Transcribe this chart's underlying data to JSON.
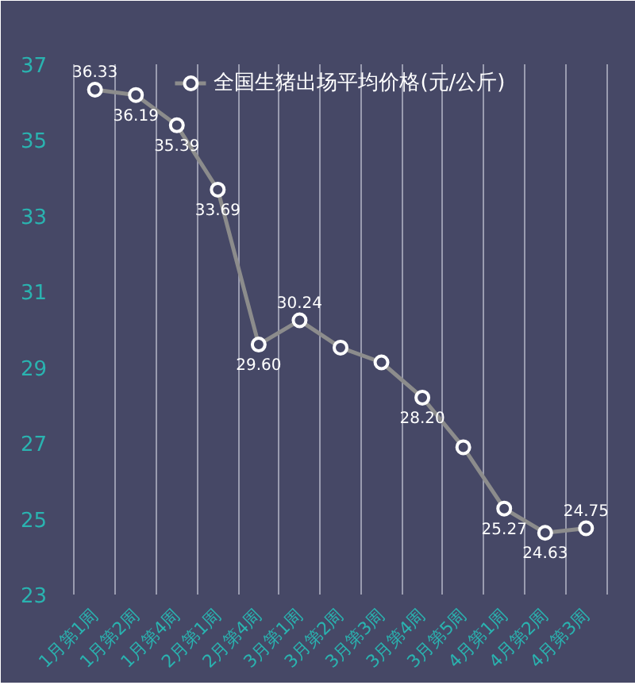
{
  "chart_data": {
    "type": "line",
    "categories": [
      "1月第1周",
      "1月第2周",
      "1月第4周",
      "2月第1周",
      "2月第4周",
      "3月第1周",
      "3月第2周",
      "3月第3周",
      "3月第4周",
      "3月第5周",
      "4月第1周",
      "4月第2周",
      "4月第3周"
    ],
    "series": [
      {
        "name": "全国生猪出场平均价格(元/公斤)",
        "color": "#8c8c8c",
        "values": [
          36.33,
          36.19,
          35.39,
          33.69,
          29.6,
          30.24,
          29.52,
          29.13,
          28.2,
          26.89,
          25.27,
          24.63,
          24.75
        ],
        "value_labels": [
          "36.33",
          "36.19",
          "35.39",
          "33.69",
          "29.60",
          "30.24",
          null,
          null,
          "28.20",
          null,
          "25.27",
          "24.63",
          "24.75"
        ]
      }
    ],
    "ylim": [
      23,
      37
    ],
    "yticks": [
      23,
      25,
      27,
      29,
      31,
      33,
      35,
      37
    ],
    "grid": "x",
    "legend": "top",
    "marker": "circle",
    "line_style": "solid"
  }
}
